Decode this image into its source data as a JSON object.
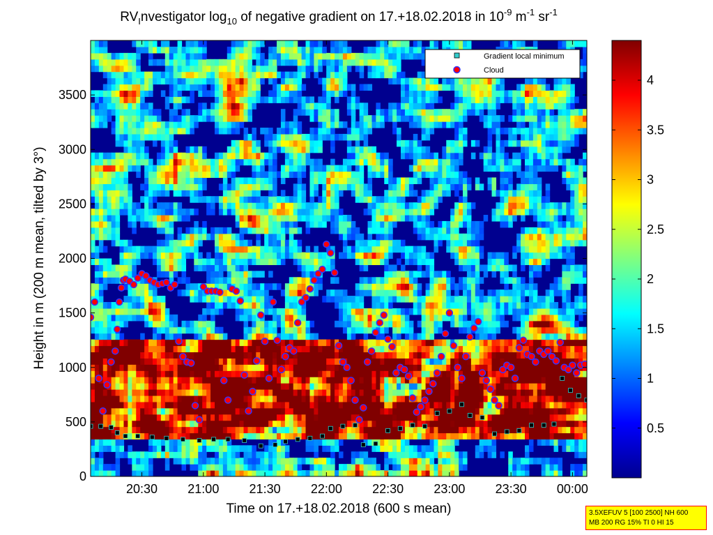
{
  "chart_data": {
    "type": "heatmap",
    "title_parts": {
      "prefix": "RV",
      "sub1": "I",
      "mid": "nvestigator log",
      "sub2": "10",
      "rest": " of negative gradient on 17.+18.02.2018 in 10",
      "exp1": "-9",
      "unit1": " m",
      "exp2": "-1",
      "unit2": " sr",
      "exp3": "-1"
    },
    "xlabel": "Time on 17.+18.02.2018 (600 s mean)",
    "ylabel": "Height in m (200 m mean, tilted by 3°)",
    "xlim_minutes": [
      1205,
      1447
    ],
    "ylim": [
      0,
      4000
    ],
    "x_ticks": [
      {
        "t": 1230,
        "label": "20:30"
      },
      {
        "t": 1260,
        "label": "21:00"
      },
      {
        "t": 1290,
        "label": "21:30"
      },
      {
        "t": 1320,
        "label": "22:00"
      },
      {
        "t": 1350,
        "label": "22:30"
      },
      {
        "t": 1380,
        "label": "23:00"
      },
      {
        "t": 1410,
        "label": "23:30"
      },
      {
        "t": 1440,
        "label": "00:00"
      }
    ],
    "y_ticks": [
      0,
      500,
      1000,
      1500,
      2000,
      2500,
      3000,
      3500
    ],
    "colorbar": {
      "min": 0,
      "max": 4.4,
      "ticks": [
        "0.5",
        "1",
        "1.5",
        "2",
        "2.5",
        "3",
        "3.5",
        "4"
      ],
      "colormap": "jet"
    },
    "legend": {
      "placement": "top-right",
      "entries": [
        {
          "name": "Gradient local minimum",
          "marker": "square",
          "color": "#33cccc"
        },
        {
          "name": "Cloud",
          "marker": "circle",
          "color": "#ff0000"
        }
      ]
    },
    "gradient_local_minimum": [
      [
        1205,
        460
      ],
      [
        1210,
        460
      ],
      [
        1215,
        450
      ],
      [
        1218,
        400
      ],
      [
        1222,
        370
      ],
      [
        1228,
        370
      ],
      [
        1235,
        360
      ],
      [
        1242,
        350
      ],
      [
        1250,
        340
      ],
      [
        1258,
        330
      ],
      [
        1265,
        340
      ],
      [
        1272,
        340
      ],
      [
        1280,
        330
      ],
      [
        1288,
        280
      ],
      [
        1295,
        290
      ],
      [
        1300,
        320
      ],
      [
        1306,
        340
      ],
      [
        1312,
        350
      ],
      [
        1318,
        370
      ],
      [
        1322,
        440
      ],
      [
        1328,
        460
      ],
      [
        1334,
        470
      ],
      [
        1338,
        290
      ],
      [
        1344,
        300
      ],
      [
        1350,
        420
      ],
      [
        1356,
        440
      ],
      [
        1362,
        470
      ],
      [
        1368,
        460
      ],
      [
        1374,
        580
      ],
      [
        1380,
        600
      ],
      [
        1386,
        660
      ],
      [
        1390,
        560
      ],
      [
        1396,
        540
      ],
      [
        1402,
        390
      ],
      [
        1408,
        410
      ],
      [
        1414,
        420
      ],
      [
        1420,
        470
      ],
      [
        1426,
        470
      ],
      [
        1431,
        480
      ],
      [
        1435,
        900
      ],
      [
        1439,
        790
      ],
      [
        1443,
        740
      ],
      [
        1447,
        700
      ]
    ],
    "cloud_height": [
      [
        1205,
        1460
      ],
      [
        1207,
        1600
      ],
      [
        1209,
        900
      ],
      [
        1211,
        600
      ],
      [
        1213,
        840
      ],
      [
        1215,
        1050
      ],
      [
        1217,
        1150
      ],
      [
        1218,
        1350
      ],
      [
        1219,
        1600
      ],
      [
        1220,
        1730
      ],
      [
        1221,
        1800
      ],
      [
        1222,
        1810
      ],
      [
        1224,
        1790
      ],
      [
        1226,
        1760
      ],
      [
        1228,
        1820
      ],
      [
        1230,
        1860
      ],
      [
        1232,
        1840
      ],
      [
        1234,
        1800
      ],
      [
        1236,
        1780
      ],
      [
        1238,
        1760
      ],
      [
        1240,
        1770
      ],
      [
        1242,
        1780
      ],
      [
        1244,
        1730
      ],
      [
        1246,
        1760
      ],
      [
        1248,
        1240
      ],
      [
        1250,
        1100
      ],
      [
        1252,
        1050
      ],
      [
        1254,
        1040
      ],
      [
        1256,
        650
      ],
      [
        1258,
        520
      ],
      [
        1260,
        1740
      ],
      [
        1262,
        1700
      ],
      [
        1264,
        1700
      ],
      [
        1266,
        1700
      ],
      [
        1268,
        1690
      ],
      [
        1270,
        880
      ],
      [
        1272,
        700
      ],
      [
        1274,
        1720
      ],
      [
        1276,
        1700
      ],
      [
        1278,
        1610
      ],
      [
        1280,
        930
      ],
      [
        1282,
        600
      ],
      [
        1284,
        780
      ],
      [
        1286,
        1060
      ],
      [
        1288,
        1480
      ],
      [
        1290,
        1240
      ],
      [
        1292,
        900
      ],
      [
        1294,
        1600
      ],
      [
        1296,
        1250
      ],
      [
        1298,
        980
      ],
      [
        1300,
        1100
      ],
      [
        1302,
        1180
      ],
      [
        1304,
        1150
      ],
      [
        1306,
        1410
      ],
      [
        1308,
        1600
      ],
      [
        1310,
        1640
      ],
      [
        1312,
        1720
      ],
      [
        1314,
        1800
      ],
      [
        1316,
        1860
      ],
      [
        1318,
        1900
      ],
      [
        1320,
        2130
      ],
      [
        1322,
        2050
      ],
      [
        1324,
        1870
      ],
      [
        1326,
        1200
      ],
      [
        1328,
        1050
      ],
      [
        1330,
        1000
      ],
      [
        1332,
        880
      ],
      [
        1334,
        700
      ],
      [
        1336,
        520
      ],
      [
        1338,
        630
      ],
      [
        1340,
        1050
      ],
      [
        1342,
        1150
      ],
      [
        1344,
        1320
      ],
      [
        1346,
        1410
      ],
      [
        1348,
        1480
      ],
      [
        1350,
        1260
      ],
      [
        1352,
        1190
      ],
      [
        1354,
        950
      ],
      [
        1356,
        1000
      ],
      [
        1358,
        980
      ],
      [
        1360,
        920
      ],
      [
        1362,
        720
      ],
      [
        1364,
        590
      ],
      [
        1366,
        640
      ],
      [
        1368,
        700
      ],
      [
        1370,
        780
      ],
      [
        1372,
        850
      ],
      [
        1374,
        950
      ],
      [
        1376,
        1100
      ],
      [
        1378,
        1310
      ],
      [
        1380,
        1500
      ],
      [
        1382,
        1200
      ],
      [
        1384,
        1000
      ],
      [
        1386,
        900
      ],
      [
        1388,
        1100
      ],
      [
        1390,
        1280
      ],
      [
        1392,
        1360
      ],
      [
        1394,
        1420
      ],
      [
        1396,
        950
      ],
      [
        1398,
        880
      ],
      [
        1400,
        800
      ],
      [
        1402,
        700
      ],
      [
        1404,
        650
      ],
      [
        1406,
        980
      ],
      [
        1408,
        1020
      ],
      [
        1410,
        1000
      ],
      [
        1412,
        900
      ],
      [
        1414,
        1180
      ],
      [
        1416,
        1250
      ],
      [
        1418,
        1120
      ],
      [
        1420,
        1100
      ],
      [
        1422,
        1050
      ],
      [
        1424,
        1150
      ],
      [
        1426,
        1120
      ],
      [
        1428,
        1150
      ],
      [
        1430,
        1100
      ],
      [
        1432,
        1060
      ],
      [
        1434,
        1230
      ],
      [
        1436,
        1000
      ],
      [
        1438,
        980
      ],
      [
        1440,
        1020
      ],
      [
        1442,
        950
      ],
      [
        1444,
        1020
      ],
      [
        1446,
        1030
      ]
    ]
  },
  "info_box": {
    "line1": "3.5XEFUV 5 [100 2500] NH 600",
    "line2": "MB 200 RG 15% TI 0 HI 15"
  }
}
